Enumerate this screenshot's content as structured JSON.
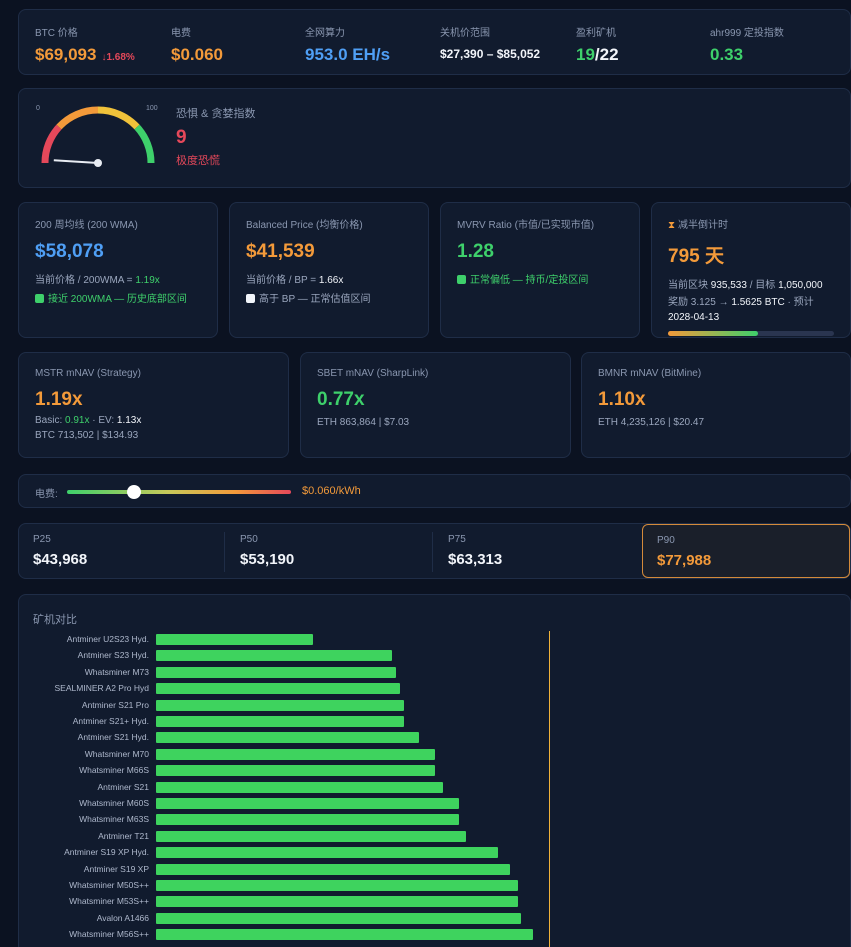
{
  "stats": [
    {
      "label": "BTC 价格",
      "value": "$69,093",
      "change": "↓1.68%",
      "color": "#f39a3a"
    },
    {
      "label": "电费",
      "value": "$0.060",
      "color": "#f39a3a"
    },
    {
      "label": "全网算力",
      "value": "953.0 EH/s",
      "color": "#4f9ff5"
    },
    {
      "label": "关机价范围",
      "value": "$27,390 – $85,052",
      "color": "#f2f5fa"
    },
    {
      "label": "盈利矿机",
      "value_a": "19",
      "value_b": "/22",
      "color": "#3ed06b"
    },
    {
      "label": "ahr999 定投指数",
      "value": "0.33",
      "color": "#3ed06b"
    }
  ],
  "fear_greed": {
    "scale_min": "0",
    "scale_max": "100",
    "title": "恐惧 & 贪婪指数",
    "value": "9",
    "value_num": 9,
    "status": "极度恐慌"
  },
  "metrics": [
    {
      "title": "200 周均线 (200 WMA)",
      "value": "$58,078",
      "line1_pre": "当前价格 / 200WMA = ",
      "line1_val": "1.19x",
      "line2": "接近 200WMA — 历史底部区间",
      "check": "green",
      "color": "#4f9ff5"
    },
    {
      "title": "Balanced Price (均衡价格)",
      "value": "$41,539",
      "line1_pre": "当前价格 / BP = ",
      "line1_val": "1.66x",
      "line2": "高于 BP — 正常估值区间",
      "check": "white",
      "color": "#f39a3a"
    },
    {
      "title": "MVRV Ratio (市值/已实现市值)",
      "value": "1.28",
      "line2": "正常偏低 — 持币/定投区间",
      "check": "green",
      "color": "#3ed06b"
    },
    {
      "title": "减半倒计时",
      "value": "795 天",
      "line1_pre": "当前区块 ",
      "line1_val": "935,533",
      "line1_post": " / 目标 ",
      "line1_val2": "1,050,000",
      "line2_pre": "奖励 3.125 → ",
      "line2_val": "1.5625 BTC",
      "line2_post": " · 预计",
      "line3": "2028-04-13",
      "progress": 0.54,
      "color": "#f39a3a"
    }
  ],
  "navs": [
    {
      "title": "MSTR mNAV (Strategy)",
      "value": "1.19x",
      "sub_pre": "Basic: ",
      "sub_a": "0.91x",
      "sub_mid": " · EV: ",
      "sub_b": "1.13x",
      "sub2": "BTC 713,502 | $134.93",
      "color": "#f39a3a"
    },
    {
      "title": "SBET mNAV (SharpLink)",
      "value": "0.77x",
      "sub2": "ETH 863,864 | $7.03",
      "color": "#3ed06b"
    },
    {
      "title": "BMNR mNAV (BitMine)",
      "value": "1.10x",
      "sub2": "ETH 4,235,126 | $20.47",
      "color": "#f39a3a"
    }
  ],
  "electricity": {
    "label": "电费:",
    "value": "$0.060/kWh",
    "slider_level": 0.3
  },
  "prices": [
    {
      "label": "P25",
      "value": "$43,968"
    },
    {
      "label": "P50",
      "value": "$53,190"
    },
    {
      "label": "P75",
      "value": "$63,313"
    },
    {
      "label": "P90",
      "value": "$77,988",
      "selected": true
    }
  ],
  "miners": {
    "title": "矿机对比",
    "items": [
      {
        "name": "Antminer U2S23 Hyd.",
        "value": 0.4
      },
      {
        "name": "Antminer S23 Hyd.",
        "value": 0.6
      },
      {
        "name": "Whatsminer M73",
        "value": 0.61
      },
      {
        "name": "SEALMINER A2 Pro Hyd",
        "value": 0.62
      },
      {
        "name": "Antminer S21 Pro",
        "value": 0.63
      },
      {
        "name": "Antminer S21+ Hyd.",
        "value": 0.63
      },
      {
        "name": "Antminer S21 Hyd.",
        "value": 0.67
      },
      {
        "name": "Whatsminer M70",
        "value": 0.71
      },
      {
        "name": "Whatsminer M66S",
        "value": 0.71
      },
      {
        "name": "Antminer S21",
        "value": 0.73
      },
      {
        "name": "Whatsminer M60S",
        "value": 0.77
      },
      {
        "name": "Whatsminer M63S",
        "value": 0.77
      },
      {
        "name": "Antminer T21",
        "value": 0.79
      },
      {
        "name": "Antminer S19 XP Hyd.",
        "value": 0.87
      },
      {
        "name": "Antminer S19 XP",
        "value": 0.9
      },
      {
        "name": "Whatsminer M50S++",
        "value": 0.92
      },
      {
        "name": "Whatsminer M53S++",
        "value": 0.92
      },
      {
        "name": "Avalon A1466",
        "value": 0.93
      },
      {
        "name": "Whatsminer M56S++",
        "value": 0.96
      }
    ],
    "reference_level": 1.0
  }
}
